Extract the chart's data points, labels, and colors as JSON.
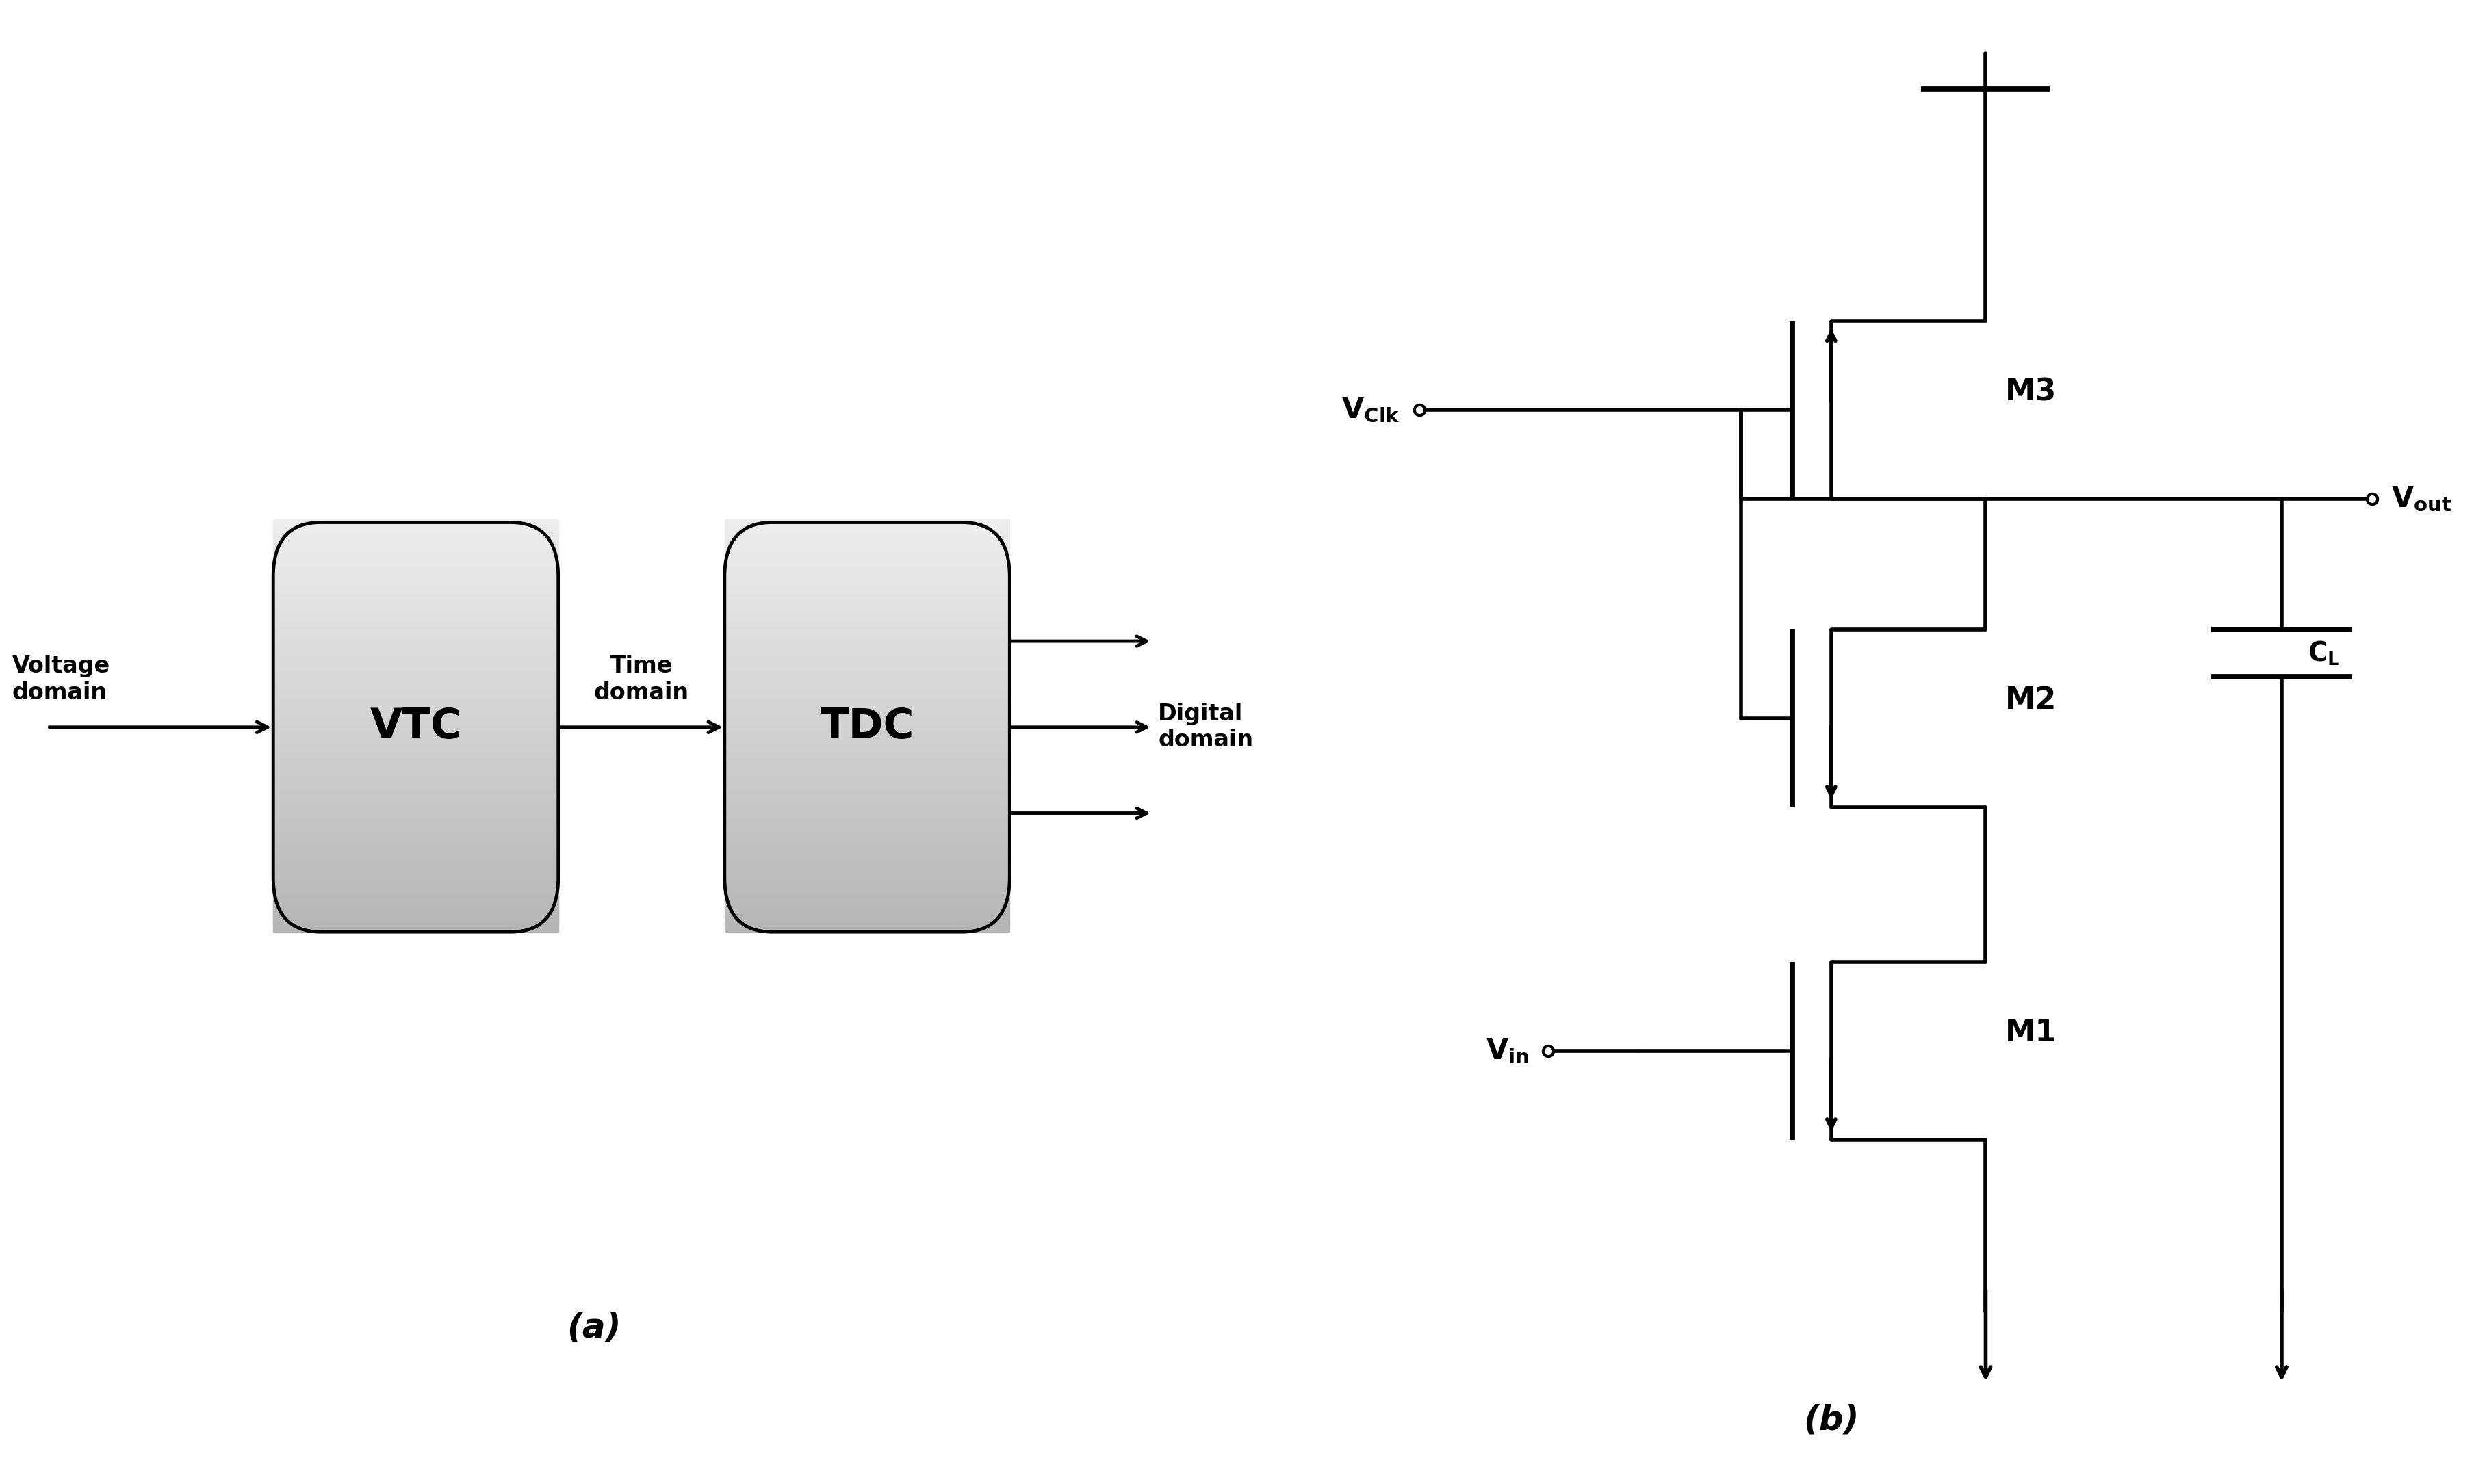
{
  "bg_color": "#ffffff",
  "line_color": "#000000",
  "fig_width": 36.16,
  "fig_height": 21.69,
  "label_a": "(a)",
  "label_b": "(b)",
  "vtc_label": "VTC",
  "tdc_label": "TDC",
  "voltage_domain": "Voltage\ndomain",
  "time_domain": "Time\ndomain",
  "digital_domain": "Digital\ndomain",
  "m1_label": "M1",
  "m2_label": "M2",
  "m3_label": "M3",
  "vclk_label": "V$_{\\mathregular{Clk}}$",
  "vout_label": "V$_{\\mathregular{out}}$",
  "vin_label": "V$_{\\mathregular{in}}$",
  "cl_label": "C$_{\\mathregular{L}}$"
}
